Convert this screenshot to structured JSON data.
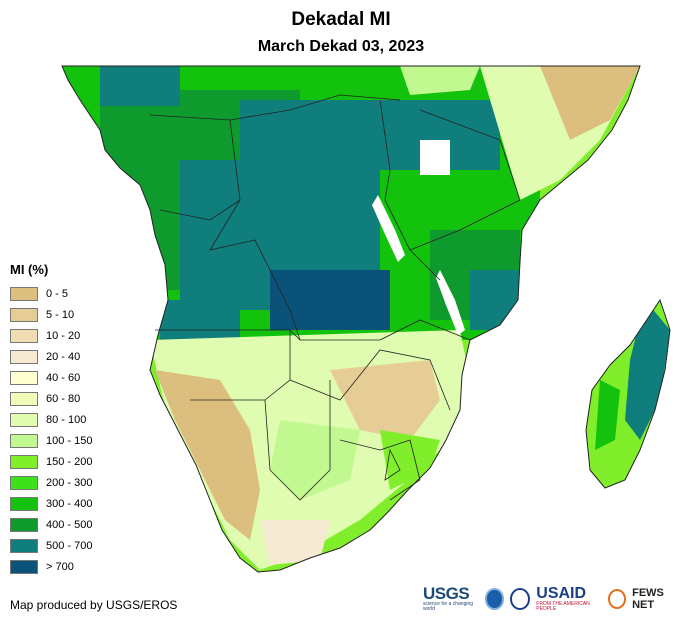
{
  "title": "Dekadal MI",
  "subtitle": "March Dekad 03, 2023",
  "legend": {
    "title": "MI (%)",
    "items": [
      {
        "label": "0 - 5",
        "color": "#dcbf7e"
      },
      {
        "label": "5 - 10",
        "color": "#e6cd96"
      },
      {
        "label": "10 - 20",
        "color": "#f0dcb2"
      },
      {
        "label": "20 - 40",
        "color": "#f7ead2"
      },
      {
        "label": "40 - 60",
        "color": "#ffffd2"
      },
      {
        "label": "60 - 80",
        "color": "#f1fcbb"
      },
      {
        "label": "80 - 100",
        "color": "#e0fcb0"
      },
      {
        "label": "100 - 150",
        "color": "#c2f890"
      },
      {
        "label": "150 - 200",
        "color": "#80ee2a"
      },
      {
        "label": "200 - 300",
        "color": "#3ee01a"
      },
      {
        "label": "300 - 400",
        "color": "#12c20c"
      },
      {
        "label": "400 - 500",
        "color": "#0e9a2c"
      },
      {
        "label": "500 - 700",
        "color": "#0f7e7c"
      },
      {
        "label": "> 700",
        "color": "#0b5278"
      }
    ]
  },
  "credit": "Map produced by USGS/EROS",
  "logos": {
    "usgs": "USGS",
    "usgs_tagline": "science for a changing world",
    "usaid": "USAID",
    "usaid_tagline": "FROM THE AMERICAN PEOPLE",
    "fews": "FEWS NET"
  }
}
